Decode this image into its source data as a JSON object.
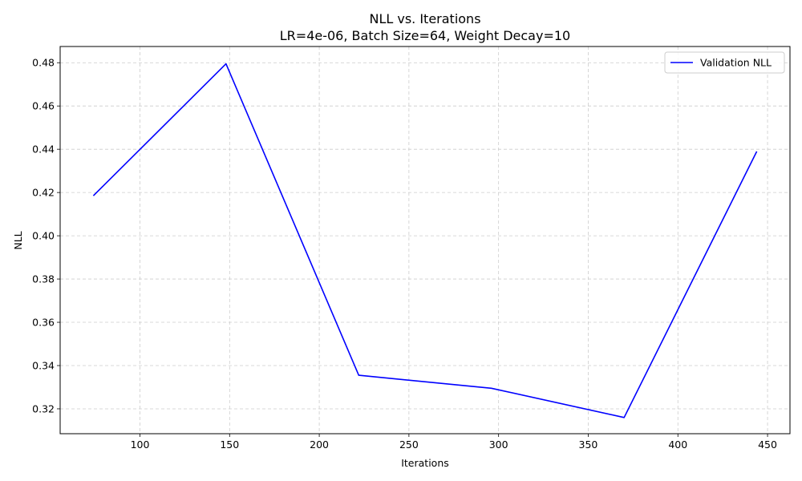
{
  "chart_data": {
    "type": "line",
    "title": "NLL vs. Iterations",
    "subtitle": "LR=4e-06, Batch Size=64, Weight Decay=10",
    "xlabel": "Iterations",
    "ylabel": "NLL",
    "xlim": [
      74,
      444
    ],
    "ylim": [
      0.3085,
      0.4875
    ],
    "x_ticks": [
      100,
      150,
      200,
      250,
      300,
      350,
      400,
      450
    ],
    "y_ticks": [
      0.32,
      0.34,
      0.36,
      0.38,
      0.4,
      0.42,
      0.44,
      0.46,
      0.48
    ],
    "grid": true,
    "legend_position": "top-right",
    "series": [
      {
        "name": "Validation NLL",
        "color": "#0000ff",
        "x": [
          74,
          148,
          222,
          296,
          370,
          444
        ],
        "y": [
          0.4185,
          0.4795,
          0.3355,
          0.3295,
          0.316,
          0.439
        ]
      }
    ]
  }
}
